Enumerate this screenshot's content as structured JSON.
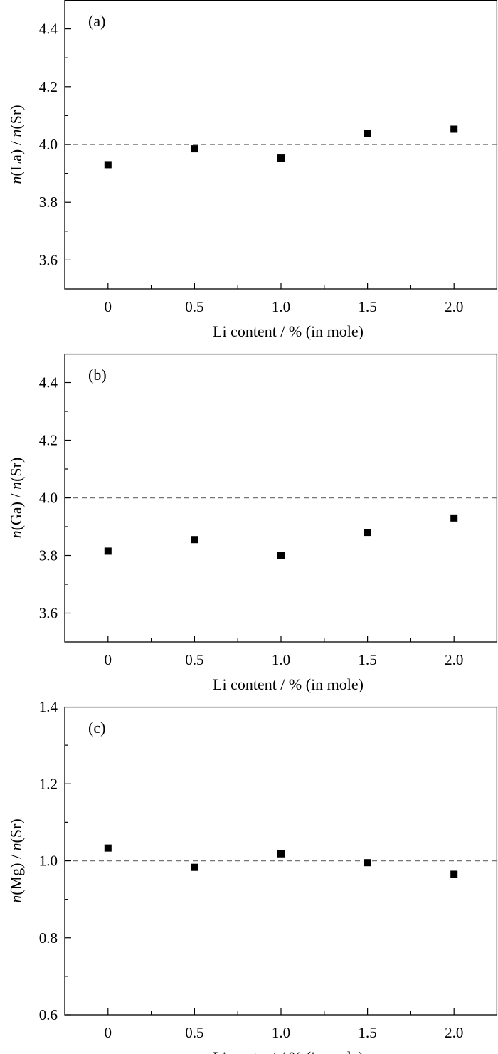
{
  "chart_data": [
    {
      "type": "scatter",
      "panel_label": "(a)",
      "xlabel": "Li content / % (in mole)",
      "ylabel": {
        "num_italic": "n",
        "num": "(La) / ",
        "den_italic": "n",
        "den": "(Sr)"
      },
      "xlim": [
        -0.25,
        2.25
      ],
      "ylim": [
        3.5,
        4.5
      ],
      "x_ticks": [
        0,
        0.5,
        1.0,
        1.5,
        2.0
      ],
      "x_tick_labels": [
        "0",
        "0.5",
        "1.0",
        "1.5",
        "2.0"
      ],
      "y_ticks": [
        3.6,
        3.8,
        4.0,
        4.2,
        4.4
      ],
      "y_tick_labels": [
        "3.6",
        "3.8",
        "4.0",
        "4.2",
        "4.4"
      ],
      "reference_line": 4.0,
      "x": [
        0,
        0.5,
        1.0,
        1.5,
        2.0
      ],
      "y": [
        3.93,
        3.985,
        3.953,
        4.038,
        4.053
      ],
      "grid": false
    },
    {
      "type": "scatter",
      "panel_label": "(b)",
      "xlabel": "Li content / % (in mole)",
      "ylabel": {
        "num_italic": "n",
        "num": "(Ga) / ",
        "den_italic": "n",
        "den": "(Sr)"
      },
      "xlim": [
        -0.25,
        2.25
      ],
      "ylim": [
        3.5,
        4.5
      ],
      "x_ticks": [
        0,
        0.5,
        1.0,
        1.5,
        2.0
      ],
      "x_tick_labels": [
        "0",
        "0.5",
        "1.0",
        "1.5",
        "2.0"
      ],
      "y_ticks": [
        3.6,
        3.8,
        4.0,
        4.2,
        4.4
      ],
      "y_tick_labels": [
        "3.6",
        "3.8",
        "4.0",
        "4.2",
        "4.4"
      ],
      "reference_line": 4.0,
      "x": [
        0,
        0.5,
        1.0,
        1.5,
        2.0
      ],
      "y": [
        3.815,
        3.855,
        3.8,
        3.88,
        3.93
      ],
      "grid": false
    },
    {
      "type": "scatter",
      "panel_label": "(c)",
      "xlabel": "Li content / % (in mole)",
      "ylabel": {
        "num_italic": "n",
        "num": "(Mg) / ",
        "den_italic": "n",
        "den": "(Sr)"
      },
      "xlim": [
        -0.25,
        2.25
      ],
      "ylim": [
        0.6,
        1.4
      ],
      "x_ticks": [
        0,
        0.5,
        1.0,
        1.5,
        2.0
      ],
      "x_tick_labels": [
        "0",
        "0.5",
        "1.0",
        "1.5",
        "2.0"
      ],
      "y_ticks": [
        0.6,
        0.8,
        1.0,
        1.2,
        1.4
      ],
      "y_tick_labels": [
        "0.6",
        "0.8",
        "1.0",
        "1.2",
        "1.4"
      ],
      "reference_line": 1.0,
      "x": [
        0,
        0.5,
        1.0,
        1.5,
        2.0
      ],
      "y": [
        1.033,
        0.983,
        1.018,
        0.995,
        0.965
      ],
      "grid": false
    }
  ]
}
